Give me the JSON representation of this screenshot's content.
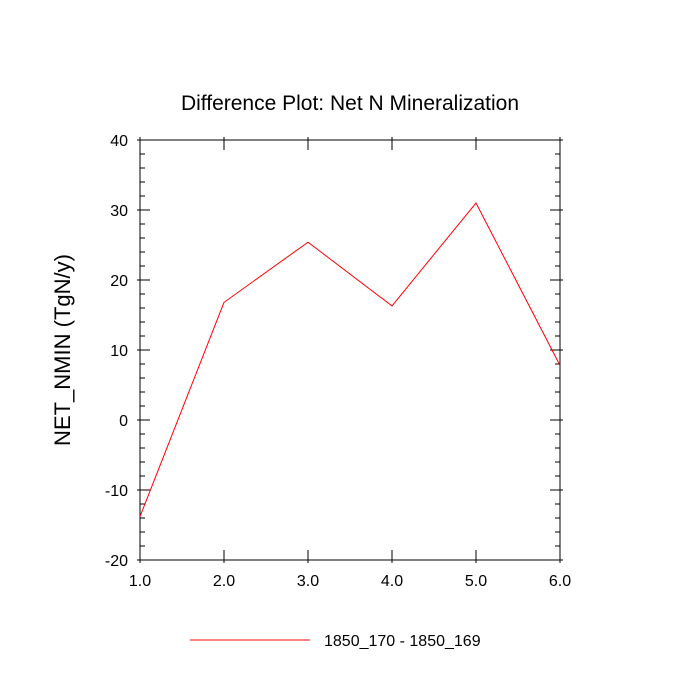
{
  "chart_data": {
    "type": "line",
    "title": "Difference Plot: Net N Mineralization",
    "xlabel": "",
    "ylabel": "NET_NMIN  (TgN/y)",
    "xlim": [
      1.0,
      6.0
    ],
    "ylim": [
      -20,
      40
    ],
    "x_ticks": [
      1.0,
      2.0,
      3.0,
      4.0,
      5.0,
      6.0
    ],
    "x_tick_labels": [
      "1.0",
      "2.0",
      "3.0",
      "4.0",
      "5.0",
      "6.0"
    ],
    "y_ticks": [
      -20,
      -10,
      0,
      10,
      20,
      30,
      40
    ],
    "y_tick_labels": [
      "-20",
      "-10",
      "0",
      "10",
      "20",
      "30",
      "40"
    ],
    "grid": false,
    "legend_position": "bottom",
    "series": [
      {
        "name": "1850_170 - 1850_169",
        "color": "#ff0000",
        "x": [
          1.0,
          2.0,
          3.0,
          4.0,
          5.0,
          6.0
        ],
        "values": [
          -13.8,
          16.8,
          25.4,
          16.3,
          31.0,
          7.8
        ]
      }
    ]
  }
}
